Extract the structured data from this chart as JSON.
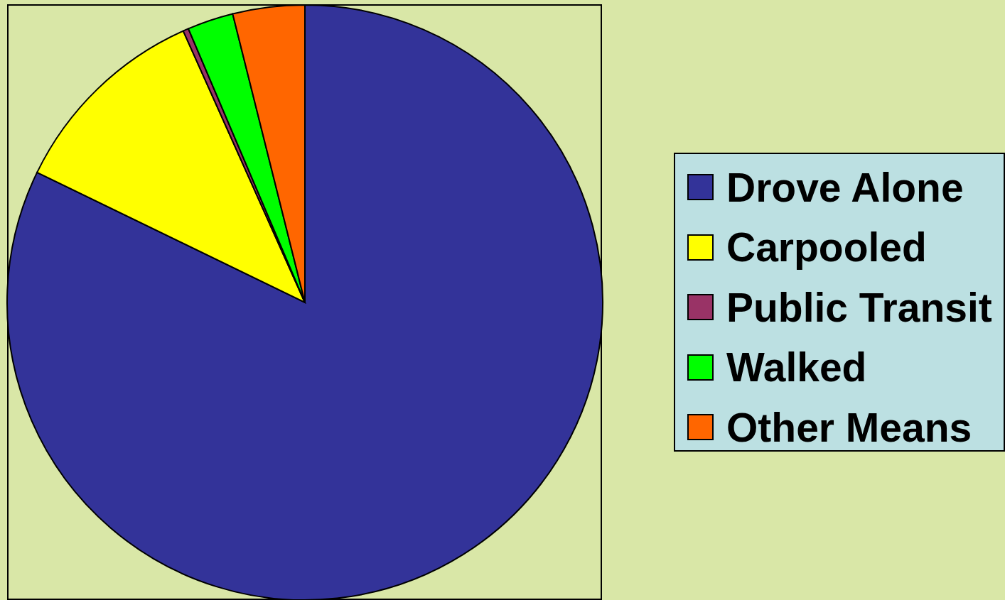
{
  "chart_data": {
    "type": "pie",
    "categories": [
      "Drove Alone",
      "Carpooled",
      "Public Transit",
      "Walked",
      "Other Means"
    ],
    "values": [
      82.2,
      11.1,
      0.3,
      2.5,
      3.9
    ],
    "colors": [
      "#333399",
      "#ffff00",
      "#993366",
      "#00ff00",
      "#ff6600"
    ],
    "legend": "right"
  }
}
